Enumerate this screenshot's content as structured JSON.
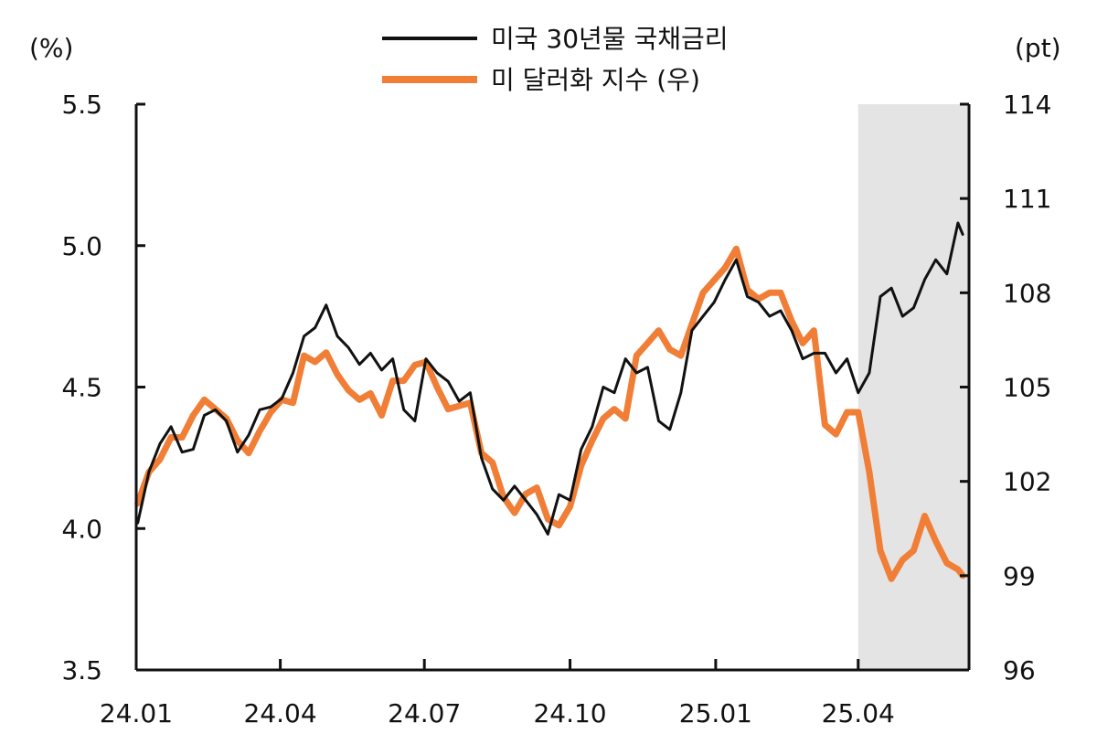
{
  "chart_data": {
    "type": "line",
    "title": "",
    "left_unit": "(%)",
    "right_unit": "(pt)",
    "x_tick_labels": [
      "24.01",
      "24.04",
      "24.07",
      "24.10",
      "25.01",
      "25.04"
    ],
    "y_left": {
      "range": [
        3.5,
        5.5
      ],
      "ticks": [
        "3.5",
        "4.0",
        "4.5",
        "5.0",
        "5.5"
      ]
    },
    "y_right": {
      "range": [
        96,
        114
      ],
      "ticks": [
        "96",
        "99",
        "102",
        "105",
        "108",
        "111",
        "114"
      ]
    },
    "shaded_region": {
      "from": "25.04",
      "to": "25.06",
      "color": "#e4e4e4"
    },
    "legend": {
      "placement": "top-center"
    },
    "series": [
      {
        "name": "미국 30년물 국채금리",
        "axis": "left",
        "color": "#111111",
        "points": [
          [
            "2024-01-02",
            4.02
          ],
          [
            "2024-01-09",
            4.2
          ],
          [
            "2024-01-16",
            4.3
          ],
          [
            "2024-01-23",
            4.36
          ],
          [
            "2024-01-30",
            4.27
          ],
          [
            "2024-02-06",
            4.28
          ],
          [
            "2024-02-13",
            4.4
          ],
          [
            "2024-02-20",
            4.42
          ],
          [
            "2024-02-27",
            4.38
          ],
          [
            "2024-03-05",
            4.27
          ],
          [
            "2024-03-12",
            4.33
          ],
          [
            "2024-03-19",
            4.42
          ],
          [
            "2024-03-26",
            4.43
          ],
          [
            "2024-04-02",
            4.46
          ],
          [
            "2024-04-09",
            4.55
          ],
          [
            "2024-04-16",
            4.68
          ],
          [
            "2024-04-23",
            4.71
          ],
          [
            "2024-04-30",
            4.79
          ],
          [
            "2024-05-07",
            4.68
          ],
          [
            "2024-05-14",
            4.64
          ],
          [
            "2024-05-21",
            4.58
          ],
          [
            "2024-05-28",
            4.62
          ],
          [
            "2024-06-04",
            4.56
          ],
          [
            "2024-06-11",
            4.6
          ],
          [
            "2024-06-18",
            4.42
          ],
          [
            "2024-06-25",
            4.38
          ],
          [
            "2024-07-02",
            4.6
          ],
          [
            "2024-07-09",
            4.55
          ],
          [
            "2024-07-16",
            4.52
          ],
          [
            "2024-07-23",
            4.45
          ],
          [
            "2024-07-30",
            4.48
          ],
          [
            "2024-08-06",
            4.25
          ],
          [
            "2024-08-13",
            4.14
          ],
          [
            "2024-08-20",
            4.1
          ],
          [
            "2024-08-27",
            4.15
          ],
          [
            "2024-09-03",
            4.1
          ],
          [
            "2024-09-10",
            4.05
          ],
          [
            "2024-09-17",
            3.98
          ],
          [
            "2024-09-24",
            4.12
          ],
          [
            "2024-10-01",
            4.1
          ],
          [
            "2024-10-08",
            4.28
          ],
          [
            "2024-10-15",
            4.36
          ],
          [
            "2024-10-22",
            4.5
          ],
          [
            "2024-10-29",
            4.48
          ],
          [
            "2024-11-05",
            4.6
          ],
          [
            "2024-11-12",
            4.55
          ],
          [
            "2024-11-19",
            4.57
          ],
          [
            "2024-11-26",
            4.38
          ],
          [
            "2024-12-03",
            4.35
          ],
          [
            "2024-12-10",
            4.48
          ],
          [
            "2024-12-17",
            4.7
          ],
          [
            "2024-12-24",
            4.75
          ],
          [
            "2024-12-31",
            4.8
          ],
          [
            "2025-01-07",
            4.88
          ],
          [
            "2025-01-14",
            4.95
          ],
          [
            "2025-01-21",
            4.82
          ],
          [
            "2025-01-28",
            4.8
          ],
          [
            "2025-02-04",
            4.75
          ],
          [
            "2025-02-11",
            4.77
          ],
          [
            "2025-02-18",
            4.7
          ],
          [
            "2025-02-25",
            4.6
          ],
          [
            "2025-03-04",
            4.62
          ],
          [
            "2025-03-11",
            4.62
          ],
          [
            "2025-03-18",
            4.55
          ],
          [
            "2025-03-25",
            4.6
          ],
          [
            "2025-04-01",
            4.48
          ],
          [
            "2025-04-08",
            4.55
          ],
          [
            "2025-04-15",
            4.82
          ],
          [
            "2025-04-22",
            4.85
          ],
          [
            "2025-04-29",
            4.75
          ],
          [
            "2025-05-06",
            4.78
          ],
          [
            "2025-05-13",
            4.88
          ],
          [
            "2025-05-20",
            4.95
          ],
          [
            "2025-05-27",
            4.9
          ],
          [
            "2025-06-03",
            5.08
          ],
          [
            "2025-06-06",
            5.04
          ]
        ]
      },
      {
        "name": "미 달러화 지수 (우)",
        "axis": "right",
        "color": "#f07e36",
        "points": [
          [
            "2024-01-02",
            101.3
          ],
          [
            "2024-01-09",
            102.3
          ],
          [
            "2024-01-16",
            102.7
          ],
          [
            "2024-01-23",
            103.4
          ],
          [
            "2024-01-30",
            103.4
          ],
          [
            "2024-02-06",
            104.1
          ],
          [
            "2024-02-13",
            104.6
          ],
          [
            "2024-02-20",
            104.3
          ],
          [
            "2024-02-27",
            104.0
          ],
          [
            "2024-03-05",
            103.3
          ],
          [
            "2024-03-12",
            102.9
          ],
          [
            "2024-03-19",
            103.6
          ],
          [
            "2024-03-26",
            104.2
          ],
          [
            "2024-04-02",
            104.6
          ],
          [
            "2024-04-09",
            104.5
          ],
          [
            "2024-04-16",
            106.0
          ],
          [
            "2024-04-23",
            105.8
          ],
          [
            "2024-04-30",
            106.1
          ],
          [
            "2024-05-07",
            105.4
          ],
          [
            "2024-05-14",
            104.9
          ],
          [
            "2024-05-21",
            104.6
          ],
          [
            "2024-05-28",
            104.8
          ],
          [
            "2024-06-04",
            104.1
          ],
          [
            "2024-06-11",
            105.2
          ],
          [
            "2024-06-18",
            105.2
          ],
          [
            "2024-06-25",
            105.7
          ],
          [
            "2024-07-02",
            105.8
          ],
          [
            "2024-07-09",
            105.0
          ],
          [
            "2024-07-16",
            104.3
          ],
          [
            "2024-07-23",
            104.4
          ],
          [
            "2024-07-30",
            104.5
          ],
          [
            "2024-08-06",
            102.9
          ],
          [
            "2024-08-13",
            102.6
          ],
          [
            "2024-08-20",
            101.5
          ],
          [
            "2024-08-27",
            101.0
          ],
          [
            "2024-09-03",
            101.6
          ],
          [
            "2024-09-10",
            101.8
          ],
          [
            "2024-09-17",
            100.8
          ],
          [
            "2024-09-24",
            100.6
          ],
          [
            "2024-10-01",
            101.2
          ],
          [
            "2024-10-08",
            102.5
          ],
          [
            "2024-10-15",
            103.3
          ],
          [
            "2024-10-22",
            104.0
          ],
          [
            "2024-10-29",
            104.3
          ],
          [
            "2024-11-05",
            104.0
          ],
          [
            "2024-11-12",
            106.0
          ],
          [
            "2024-11-19",
            106.4
          ],
          [
            "2024-11-26",
            106.8
          ],
          [
            "2024-12-03",
            106.2
          ],
          [
            "2024-12-10",
            106.0
          ],
          [
            "2024-12-17",
            107.0
          ],
          [
            "2024-12-24",
            108.0
          ],
          [
            "2024-12-31",
            108.4
          ],
          [
            "2025-01-07",
            108.8
          ],
          [
            "2025-01-14",
            109.4
          ],
          [
            "2025-01-21",
            108.1
          ],
          [
            "2025-01-28",
            107.8
          ],
          [
            "2025-02-04",
            108.0
          ],
          [
            "2025-02-11",
            108.0
          ],
          [
            "2025-02-18",
            107.1
          ],
          [
            "2025-02-25",
            106.4
          ],
          [
            "2025-03-04",
            106.8
          ],
          [
            "2025-03-11",
            103.8
          ],
          [
            "2025-03-18",
            103.5
          ],
          [
            "2025-03-25",
            104.2
          ],
          [
            "2025-04-01",
            104.2
          ],
          [
            "2025-04-08",
            102.3
          ],
          [
            "2025-04-15",
            99.8
          ],
          [
            "2025-04-22",
            98.9
          ],
          [
            "2025-04-29",
            99.5
          ],
          [
            "2025-05-06",
            99.8
          ],
          [
            "2025-05-13",
            100.9
          ],
          [
            "2025-05-20",
            100.1
          ],
          [
            "2025-05-27",
            99.4
          ],
          [
            "2025-06-03",
            99.2
          ],
          [
            "2025-06-06",
            99.0
          ]
        ]
      }
    ]
  }
}
